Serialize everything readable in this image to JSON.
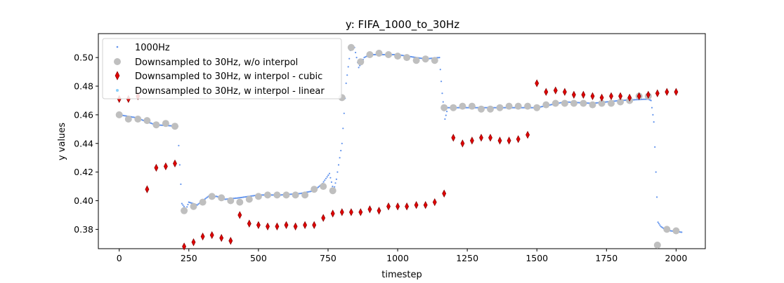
{
  "chart_data": {
    "type": "scatter",
    "title": "y: FIFA_1000_to_30Hz",
    "xlabel": "timestep",
    "ylabel": "y values",
    "xlim": [
      -75,
      2105
    ],
    "ylim": [
      0.3665,
      0.5167
    ],
    "x_ticks": [
      0,
      250,
      500,
      750,
      1000,
      1250,
      1500,
      1750,
      2000
    ],
    "x_tick_labels": [
      "0",
      "250",
      "500",
      "750",
      "1000",
      "1250",
      "1500",
      "1750",
      "2000"
    ],
    "y_ticks": [
      0.38,
      0.4,
      0.42,
      0.44,
      0.46,
      0.48,
      0.5
    ],
    "y_tick_labels": [
      "0.38",
      "0.40",
      "0.42",
      "0.44",
      "0.46",
      "0.48",
      "0.50"
    ],
    "grid": false,
    "legend_position": "upper-left",
    "series": [
      {
        "name": "1000Hz",
        "color": "#6495ed",
        "marker": "small-dot",
        "keypoints": [
          [
            0,
            0.46
          ],
          [
            60,
            0.458
          ],
          [
            130,
            0.453
          ],
          [
            210,
            0.452
          ],
          [
            225,
            0.398
          ],
          [
            240,
            0.394
          ],
          [
            250,
            0.399
          ],
          [
            280,
            0.397
          ],
          [
            320,
            0.403
          ],
          [
            350,
            0.403
          ],
          [
            380,
            0.401
          ],
          [
            430,
            0.402
          ],
          [
            500,
            0.404
          ],
          [
            580,
            0.404
          ],
          [
            650,
            0.405
          ],
          [
            700,
            0.407
          ],
          [
            730,
            0.412
          ],
          [
            755,
            0.419
          ],
          [
            770,
            0.407
          ],
          [
            780,
            0.415
          ],
          [
            800,
            0.44
          ],
          [
            815,
            0.482
          ],
          [
            830,
            0.505
          ],
          [
            845,
            0.507
          ],
          [
            860,
            0.493
          ],
          [
            880,
            0.5
          ],
          [
            900,
            0.502
          ],
          [
            1000,
            0.502
          ],
          [
            1100,
            0.499
          ],
          [
            1150,
            0.5
          ],
          [
            1160,
            0.475
          ],
          [
            1170,
            0.457
          ],
          [
            1180,
            0.465
          ],
          [
            1250,
            0.465
          ],
          [
            1350,
            0.465
          ],
          [
            1500,
            0.465
          ],
          [
            1600,
            0.469
          ],
          [
            1700,
            0.468
          ],
          [
            1800,
            0.47
          ],
          [
            1900,
            0.471
          ],
          [
            1910,
            0.47
          ],
          [
            1920,
            0.455
          ],
          [
            1935,
            0.385
          ],
          [
            1945,
            0.382
          ],
          [
            1960,
            0.38
          ],
          [
            1980,
            0.379
          ],
          [
            2020,
            0.378
          ]
        ]
      },
      {
        "name": "Downsampled to 30Hz, w/o interpol",
        "color": "#bfbfbf",
        "marker": "circle",
        "points": [
          [
            0,
            0.46
          ],
          [
            33,
            0.457
          ],
          [
            67,
            0.457
          ],
          [
            100,
            0.456
          ],
          [
            133,
            0.453
          ],
          [
            167,
            0.454
          ],
          [
            200,
            0.452
          ],
          [
            233,
            0.393
          ],
          [
            267,
            0.396
          ],
          [
            300,
            0.399
          ],
          [
            333,
            0.403
          ],
          [
            367,
            0.402
          ],
          [
            400,
            0.4
          ],
          [
            433,
            0.399
          ],
          [
            467,
            0.401
          ],
          [
            500,
            0.403
          ],
          [
            533,
            0.404
          ],
          [
            567,
            0.404
          ],
          [
            600,
            0.404
          ],
          [
            633,
            0.404
          ],
          [
            667,
            0.404
          ],
          [
            700,
            0.408
          ],
          [
            733,
            0.41
          ],
          [
            767,
            0.407
          ],
          [
            800,
            0.472
          ],
          [
            833,
            0.507
          ],
          [
            867,
            0.497
          ],
          [
            900,
            0.502
          ],
          [
            933,
            0.503
          ],
          [
            967,
            0.502
          ],
          [
            1000,
            0.501
          ],
          [
            1033,
            0.5
          ],
          [
            1067,
            0.498
          ],
          [
            1100,
            0.499
          ],
          [
            1133,
            0.498
          ],
          [
            1167,
            0.465
          ],
          [
            1200,
            0.465
          ],
          [
            1233,
            0.466
          ],
          [
            1267,
            0.466
          ],
          [
            1300,
            0.464
          ],
          [
            1333,
            0.464
          ],
          [
            1367,
            0.465
          ],
          [
            1400,
            0.466
          ],
          [
            1433,
            0.466
          ],
          [
            1467,
            0.466
          ],
          [
            1500,
            0.465
          ],
          [
            1533,
            0.467
          ],
          [
            1567,
            0.468
          ],
          [
            1600,
            0.468
          ],
          [
            1633,
            0.468
          ],
          [
            1667,
            0.468
          ],
          [
            1700,
            0.467
          ],
          [
            1733,
            0.468
          ],
          [
            1767,
            0.468
          ],
          [
            1800,
            0.469
          ],
          [
            1833,
            0.47
          ],
          [
            1867,
            0.473
          ],
          [
            1900,
            0.473
          ],
          [
            1933,
            0.369
          ],
          [
            1967,
            0.38
          ],
          [
            2000,
            0.379
          ]
        ]
      },
      {
        "name": "Downsampled to 30Hz, w interpol - cubic",
        "color": "#e00000",
        "marker": "thin-diamond",
        "points": [
          [
            0,
            0.471
          ],
          [
            33,
            0.471
          ],
          [
            67,
            0.473
          ],
          [
            100,
            0.408
          ],
          [
            133,
            0.423
          ],
          [
            167,
            0.424
          ],
          [
            200,
            0.426
          ],
          [
            233,
            0.368
          ],
          [
            267,
            0.371
          ],
          [
            300,
            0.375
          ],
          [
            333,
            0.376
          ],
          [
            367,
            0.374
          ],
          [
            400,
            0.372
          ],
          [
            433,
            0.39
          ],
          [
            467,
            0.384
          ],
          [
            500,
            0.383
          ],
          [
            533,
            0.382
          ],
          [
            567,
            0.382
          ],
          [
            600,
            0.383
          ],
          [
            633,
            0.382
          ],
          [
            667,
            0.383
          ],
          [
            700,
            0.383
          ],
          [
            733,
            0.388
          ],
          [
            767,
            0.391
          ],
          [
            800,
            0.392
          ],
          [
            833,
            0.392
          ],
          [
            867,
            0.392
          ],
          [
            900,
            0.394
          ],
          [
            933,
            0.393
          ],
          [
            967,
            0.396
          ],
          [
            1000,
            0.396
          ],
          [
            1033,
            0.396
          ],
          [
            1067,
            0.397
          ],
          [
            1100,
            0.397
          ],
          [
            1133,
            0.399
          ],
          [
            1167,
            0.405
          ],
          [
            1200,
            0.444
          ],
          [
            1233,
            0.44
          ],
          [
            1267,
            0.442
          ],
          [
            1300,
            0.444
          ],
          [
            1333,
            0.444
          ],
          [
            1367,
            0.442
          ],
          [
            1400,
            0.442
          ],
          [
            1433,
            0.443
          ],
          [
            1467,
            0.446
          ],
          [
            1500,
            0.482
          ],
          [
            1533,
            0.476
          ],
          [
            1567,
            0.477
          ],
          [
            1600,
            0.476
          ],
          [
            1633,
            0.474
          ],
          [
            1667,
            0.474
          ],
          [
            1700,
            0.473
          ],
          [
            1733,
            0.472
          ],
          [
            1767,
            0.473
          ],
          [
            1800,
            0.473
          ],
          [
            1833,
            0.472
          ],
          [
            1867,
            0.473
          ],
          [
            1900,
            0.474
          ],
          [
            1933,
            0.475
          ],
          [
            1967,
            0.476
          ],
          [
            2000,
            0.476
          ]
        ]
      },
      {
        "name": "Downsampled to 30Hz, w interpol - linear",
        "color": "#87cefa",
        "marker": "small-dot",
        "points": []
      }
    ]
  }
}
